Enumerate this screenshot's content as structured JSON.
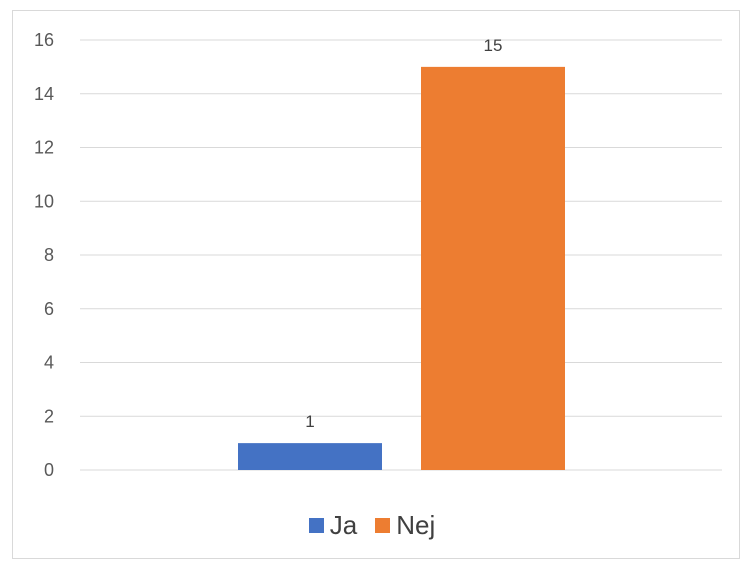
{
  "chart_data": {
    "type": "bar",
    "categories": [
      "Ja",
      "Nej"
    ],
    "values": [
      1,
      15
    ],
    "colors": [
      "#4472c4",
      "#ed7d31"
    ],
    "ylim": [
      0,
      16
    ],
    "yticks": [
      0,
      2,
      4,
      6,
      8,
      10,
      12,
      14,
      16
    ],
    "grid": true,
    "legend_position": "bottom",
    "data_labels": [
      "1",
      "15"
    ]
  }
}
